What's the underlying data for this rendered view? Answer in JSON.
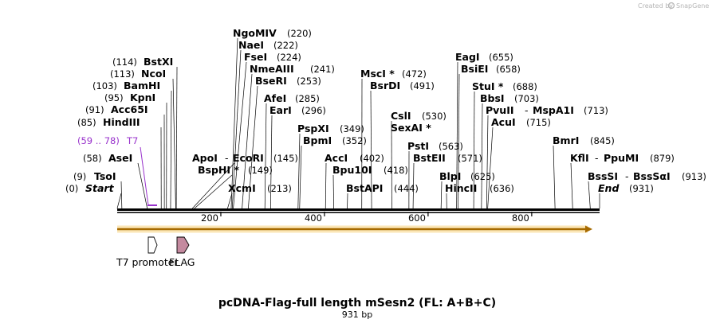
{
  "credit": "Created by",
  "brand": "SnapGene",
  "title": "pcDNA-Flag-full length mSesn2 (FL: A+B+C)",
  "length_label": "931 bp",
  "sequence_length": 931,
  "ticks": [
    {
      "bp": 200,
      "label": "200"
    },
    {
      "bp": 400,
      "label": "400"
    },
    {
      "bp": 600,
      "label": "600"
    },
    {
      "bp": 800,
      "label": "800"
    }
  ],
  "features": [
    {
      "name": "T7 promoter",
      "type": "promoter"
    },
    {
      "name": "FLAG",
      "type": "tag"
    }
  ],
  "highlight": {
    "range": "(59 .. 78)",
    "name": "T7",
    "color": "#9933cc"
  },
  "sites": [
    {
      "name": "Start",
      "pos": "(0)",
      "bp": 0
    },
    {
      "name": "TsoI",
      "pos": "(9)",
      "bp": 9
    },
    {
      "name": "AseI",
      "pos": "(58)",
      "bp": 58
    },
    {
      "name": "HindIII",
      "pos": "(85)",
      "bp": 85
    },
    {
      "name": "Acc65I",
      "pos": "(91)",
      "bp": 91
    },
    {
      "name": "KpnI",
      "pos": "(95)",
      "bp": 95
    },
    {
      "name": "BamHI",
      "pos": "(103)",
      "bp": 103
    },
    {
      "name": "NcoI",
      "pos": "(113)",
      "bp": 113
    },
    {
      "name": "BstXI",
      "pos": "(114)",
      "bp": 114
    },
    {
      "name": "ApoI",
      "pos": "",
      "bp": 145
    },
    {
      "name": "EcoRI",
      "pos": "(145)",
      "bp": 145
    },
    {
      "name": "BspHI *",
      "pos": "(149)",
      "bp": 149
    },
    {
      "name": "XcmI",
      "pos": "(213)",
      "bp": 213
    },
    {
      "name": "NgoMIV",
      "pos": "(220)",
      "bp": 220
    },
    {
      "name": "NaeI",
      "pos": "(222)",
      "bp": 222
    },
    {
      "name": "FseI",
      "pos": "(224)",
      "bp": 224
    },
    {
      "name": "NmeAIII",
      "pos": "(241)",
      "bp": 241
    },
    {
      "name": "BseRI",
      "pos": "(253)",
      "bp": 253
    },
    {
      "name": "AfeI",
      "pos": "(285)",
      "bp": 285
    },
    {
      "name": "EarI",
      "pos": "(296)",
      "bp": 296
    },
    {
      "name": "PspXI",
      "pos": "(349)",
      "bp": 349
    },
    {
      "name": "BpmI",
      "pos": "(352)",
      "bp": 352
    },
    {
      "name": "AccI",
      "pos": "(402)",
      "bp": 402
    },
    {
      "name": "Bpu10I",
      "pos": "(418)",
      "bp": 418
    },
    {
      "name": "BstAPI",
      "pos": "(444)",
      "bp": 444
    },
    {
      "name": "MscI *",
      "pos": "(472)",
      "bp": 472
    },
    {
      "name": "BsrDI",
      "pos": "(491)",
      "bp": 491
    },
    {
      "name": "CslI",
      "pos": "(530)",
      "bp": 530
    },
    {
      "name": "SexAI *",
      "pos": "",
      "bp": 530
    },
    {
      "name": "PstI",
      "pos": "(563)",
      "bp": 563
    },
    {
      "name": "BstEII",
      "pos": "(571)",
      "bp": 571
    },
    {
      "name": "BlpI",
      "pos": "(625)",
      "bp": 625
    },
    {
      "name": "HincII",
      "pos": "(636)",
      "bp": 636
    },
    {
      "name": "EagI",
      "pos": "(655)",
      "bp": 655
    },
    {
      "name": "BsiEI",
      "pos": "(658)",
      "bp": 658
    },
    {
      "name": "StuI *",
      "pos": "(688)",
      "bp": 688
    },
    {
      "name": "BbsI",
      "pos": "(703)",
      "bp": 703
    },
    {
      "name": "PvuII",
      "pos": "",
      "bp": 713
    },
    {
      "name": "MspA1I",
      "pos": "(713)",
      "bp": 713
    },
    {
      "name": "AcuI",
      "pos": "(715)",
      "bp": 715
    },
    {
      "name": "BmrI",
      "pos": "(845)",
      "bp": 845
    },
    {
      "name": "KflI",
      "pos": "",
      "bp": 879
    },
    {
      "name": "PpuMI",
      "pos": "(879)",
      "bp": 879
    },
    {
      "name": "BssSI",
      "pos": "",
      "bp": 913
    },
    {
      "name": "BssSαI",
      "pos": "(913)",
      "bp": 913
    },
    {
      "name": "End",
      "pos": "(931)",
      "bp": 931
    }
  ]
}
